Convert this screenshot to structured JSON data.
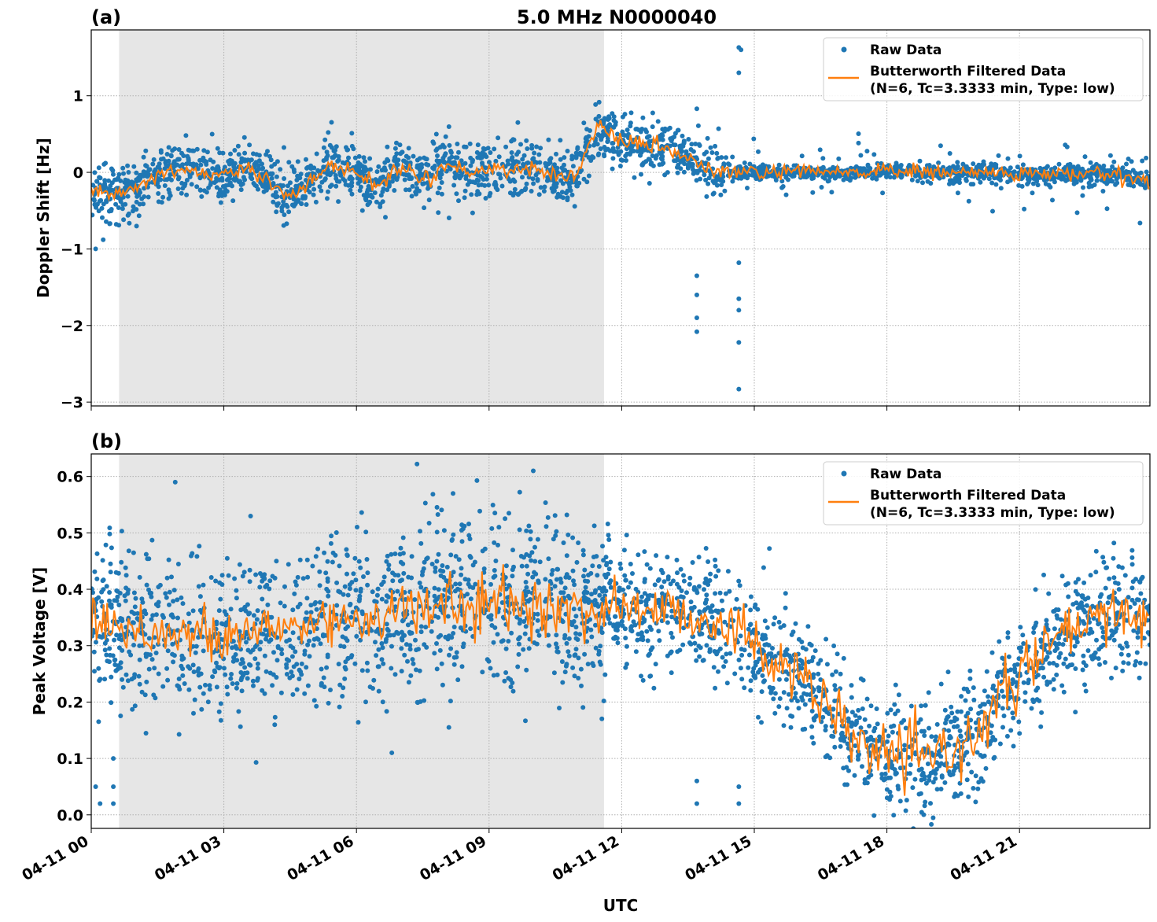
{
  "figure_title": "5.0 MHz N0000040",
  "chart_data": [
    {
      "type": "scatter",
      "panel_label": "(a)",
      "title": "5.0 MHz N0000040",
      "xlabel": "",
      "ylabel": "Doppler Shift [Hz]",
      "xlim_hours": [
        0,
        23.95
      ],
      "ylim": [
        -3.05,
        1.86
      ],
      "yticks": [
        1,
        0,
        -1,
        -2,
        -3
      ],
      "ytick_labels": [
        "1",
        "0",
        "−1",
        "−2",
        "−3"
      ],
      "shaded_region_hours": [
        0.63,
        11.6
      ],
      "grid": true,
      "legend_placement": "top-right",
      "legend": [
        "Raw Data",
        "Butterworth Filtered Data",
        "(N=6, Tc=3.3333 min, Type: low)"
      ],
      "colors": {
        "raw": "#1f77b4",
        "filtered": "#ff7f0e",
        "shade": "#e6e6e6"
      },
      "filtered_series": {
        "x_hours": [
          0,
          0.5,
          1,
          1.5,
          2,
          2.5,
          3,
          3.5,
          4,
          4.5,
          5,
          5.5,
          6,
          6.5,
          7,
          7.5,
          8,
          8.5,
          9,
          9.5,
          10,
          10.5,
          11,
          11.5,
          12,
          12.5,
          13,
          13.5,
          14,
          15,
          16,
          17,
          18,
          19,
          20,
          21,
          22,
          23,
          23.95
        ],
        "y": [
          -0.2,
          -0.3,
          -0.2,
          -0.05,
          0.05,
          0.0,
          -0.05,
          0.05,
          -0.1,
          -0.3,
          -0.1,
          0.1,
          0.0,
          -0.2,
          0.1,
          -0.1,
          0.1,
          0.0,
          0.05,
          0.05,
          0.05,
          -0.05,
          0.0,
          0.6,
          0.4,
          0.35,
          0.3,
          0.2,
          0.0,
          0.0,
          0.0,
          0.0,
          0.02,
          0.0,
          0.0,
          -0.02,
          -0.02,
          -0.02,
          -0.1
        ]
      },
      "raw_spread": {
        "x_hours": [
          0,
          11.8,
          12,
          14.3,
          14.5,
          23.95
        ],
        "sigma": [
          0.18,
          0.18,
          0.16,
          0.16,
          0.04,
          0.06
        ]
      },
      "outliers": [
        [
          13.7,
          -1.35
        ],
        [
          13.7,
          -1.6
        ],
        [
          13.7,
          -2.08
        ],
        [
          13.7,
          -1.9
        ],
        [
          14.65,
          -2.83
        ],
        [
          14.65,
          -2.22
        ],
        [
          14.65,
          -1.8
        ],
        [
          14.65,
          -1.65
        ],
        [
          14.65,
          1.63
        ],
        [
          14.7,
          1.6
        ],
        [
          14.65,
          1.3
        ],
        [
          0.1,
          -1.0
        ],
        [
          13.7,
          0.83
        ],
        [
          14.65,
          -1.18
        ]
      ]
    },
    {
      "type": "scatter",
      "panel_label": "(b)",
      "title": "",
      "xlabel": "UTC",
      "ylabel": "Peak Voltage [V]",
      "xlim_hours": [
        0,
        23.95
      ],
      "ylim": [
        -0.024,
        0.64
      ],
      "yticks": [
        0.6,
        0.5,
        0.4,
        0.3,
        0.2,
        0.1,
        0.0
      ],
      "ytick_labels": [
        "0.6",
        "0.5",
        "0.4",
        "0.3",
        "0.2",
        "0.1",
        "0.0"
      ],
      "xticks_hours": [
        0,
        3,
        6,
        9,
        12,
        15,
        18,
        21
      ],
      "xtick_labels": [
        "04-11 00",
        "04-11 03",
        "04-11 06",
        "04-11 09",
        "04-11 12",
        "04-11 15",
        "04-11 18",
        "04-11 21"
      ],
      "shaded_region_hours": [
        0.63,
        11.6
      ],
      "grid": true,
      "legend_placement": "top-right",
      "legend": [
        "Raw Data",
        "Butterworth Filtered Data",
        "(N=6, Tc=3.3333 min, Type: low)"
      ],
      "colors": {
        "raw": "#1f77b4",
        "filtered": "#ff7f0e",
        "shade": "#e6e6e6"
      },
      "filtered_series": {
        "x_hours": [
          0,
          1,
          2,
          3,
          4,
          5,
          6,
          7,
          8,
          9,
          10,
          11,
          12,
          13,
          14,
          14.5,
          15,
          16,
          17,
          18,
          19,
          20,
          21,
          22,
          23,
          23.95
        ],
        "y": [
          0.35,
          0.33,
          0.32,
          0.31,
          0.33,
          0.34,
          0.35,
          0.36,
          0.37,
          0.37,
          0.37,
          0.36,
          0.37,
          0.36,
          0.35,
          0.33,
          0.3,
          0.25,
          0.15,
          0.1,
          0.1,
          0.14,
          0.25,
          0.32,
          0.35,
          0.36
        ]
      },
      "raw_spread": {
        "x_hours": [
          0,
          9,
          11.6,
          12,
          14.5,
          17,
          20,
          22,
          23.95
        ],
        "sigma": [
          0.07,
          0.08,
          0.07,
          0.05,
          0.05,
          0.05,
          0.05,
          0.05,
          0.05
        ]
      },
      "outliers": [
        [
          0.5,
          0.1
        ],
        [
          0.5,
          0.05
        ],
        [
          0.5,
          0.02
        ],
        [
          0.1,
          0.05
        ],
        [
          0.2,
          0.02
        ],
        [
          13.7,
          0.06
        ],
        [
          13.7,
          0.02
        ],
        [
          14.65,
          0.02
        ],
        [
          14.65,
          0.05
        ],
        [
          6.8,
          0.11
        ],
        [
          10,
          0.61
        ],
        [
          1.9,
          0.59
        ]
      ]
    }
  ]
}
